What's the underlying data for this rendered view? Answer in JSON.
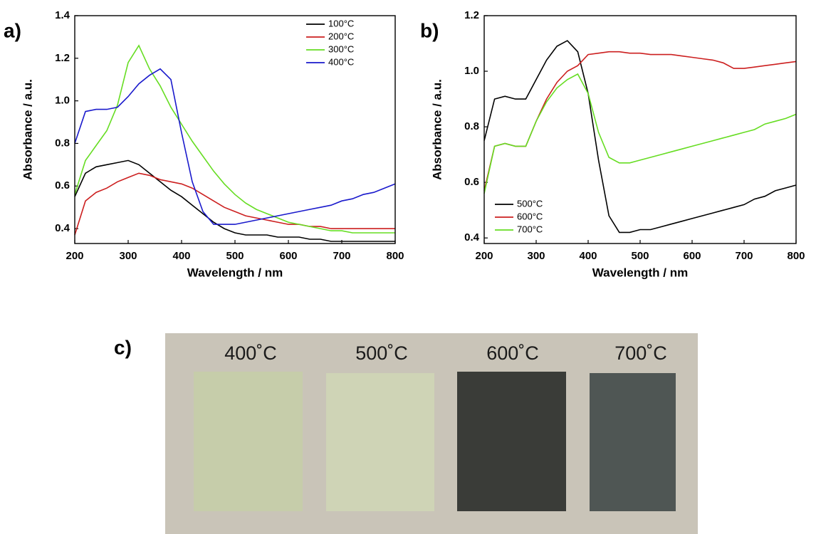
{
  "chart_data": [
    {
      "type": "line",
      "panel": "a)",
      "xlabel": "Wavelength / nm",
      "ylabel": "Absorbance / a.u.",
      "x": [
        200,
        220,
        240,
        260,
        280,
        300,
        320,
        340,
        360,
        380,
        400,
        420,
        440,
        460,
        480,
        500,
        520,
        540,
        560,
        580,
        600,
        620,
        640,
        660,
        680,
        700,
        720,
        740,
        760,
        780,
        800
      ],
      "series": [
        {
          "name": "100°C",
          "color": "#000000",
          "values": [
            0.55,
            0.66,
            0.69,
            0.7,
            0.71,
            0.72,
            0.7,
            0.66,
            0.62,
            0.58,
            0.55,
            0.51,
            0.47,
            0.43,
            0.4,
            0.38,
            0.37,
            0.37,
            0.37,
            0.36,
            0.36,
            0.36,
            0.35,
            0.35,
            0.34,
            0.34,
            0.34,
            0.34,
            0.34,
            0.34,
            0.34
          ]
        },
        {
          "name": "200°C",
          "color": "#cc1f1f",
          "values": [
            0.37,
            0.53,
            0.57,
            0.59,
            0.62,
            0.64,
            0.66,
            0.65,
            0.63,
            0.62,
            0.61,
            0.59,
            0.56,
            0.53,
            0.5,
            0.48,
            0.46,
            0.45,
            0.44,
            0.43,
            0.42,
            0.42,
            0.41,
            0.41,
            0.4,
            0.4,
            0.4,
            0.4,
            0.4,
            0.4,
            0.4
          ]
        },
        {
          "name": "300°C",
          "color": "#66dd22",
          "values": [
            0.56,
            0.72,
            0.79,
            0.86,
            0.98,
            1.18,
            1.26,
            1.15,
            1.07,
            0.97,
            0.89,
            0.81,
            0.74,
            0.67,
            0.61,
            0.56,
            0.52,
            0.49,
            0.47,
            0.45,
            0.43,
            0.42,
            0.41,
            0.4,
            0.39,
            0.39,
            0.38,
            0.38,
            0.38,
            0.38,
            0.38
          ]
        },
        {
          "name": "400°C",
          "color": "#1a1acc",
          "values": [
            0.8,
            0.95,
            0.96,
            0.96,
            0.97,
            1.02,
            1.08,
            1.12,
            1.15,
            1.1,
            0.85,
            0.62,
            0.48,
            0.42,
            0.42,
            0.42,
            0.43,
            0.44,
            0.45,
            0.46,
            0.47,
            0.48,
            0.49,
            0.5,
            0.51,
            0.53,
            0.54,
            0.56,
            0.57,
            0.59,
            0.61
          ]
        }
      ],
      "xlim": [
        200,
        800
      ],
      "xticks": [
        200,
        300,
        400,
        500,
        600,
        700,
        800
      ],
      "ylim": [
        0.33,
        1.4
      ],
      "yticks": [
        0.4,
        0.6,
        0.8,
        {
          "value": 1,
          "label": "1.0"
        },
        1.2,
        1.4
      ],
      "legend": "upper right"
    },
    {
      "type": "line",
      "panel": "b)",
      "xlabel": "Wavelength / nm",
      "ylabel": "Absorbance / a.u.",
      "x": [
        200,
        220,
        240,
        260,
        280,
        300,
        320,
        340,
        360,
        380,
        400,
        420,
        440,
        460,
        480,
        500,
        520,
        540,
        560,
        580,
        600,
        620,
        640,
        660,
        680,
        700,
        720,
        740,
        760,
        780,
        800
      ],
      "series": [
        {
          "name": "500°C",
          "color": "#000000",
          "values": [
            0.75,
            0.9,
            0.91,
            0.9,
            0.9,
            0.97,
            1.04,
            1.09,
            1.11,
            1.07,
            0.92,
            0.68,
            0.48,
            0.42,
            0.42,
            0.43,
            0.43,
            0.44,
            0.45,
            0.46,
            0.47,
            0.48,
            0.49,
            0.5,
            0.51,
            0.52,
            0.54,
            0.55,
            0.57,
            0.58,
            0.59
          ]
        },
        {
          "name": "600°C",
          "color": "#cc1f1f",
          "values": [
            0.57,
            0.73,
            0.74,
            0.73,
            0.73,
            0.82,
            0.9,
            0.96,
            1.0,
            1.02,
            1.06,
            1.065,
            1.07,
            1.07,
            1.065,
            1.065,
            1.06,
            1.06,
            1.06,
            1.055,
            1.05,
            1.045,
            1.04,
            1.03,
            1.01,
            1.01,
            1.015,
            1.02,
            1.025,
            1.03,
            1.035
          ]
        },
        {
          "name": "700°C",
          "color": "#66dd22",
          "values": [
            0.56,
            0.73,
            0.74,
            0.73,
            0.73,
            0.82,
            0.89,
            0.94,
            0.97,
            0.99,
            0.92,
            0.78,
            0.69,
            0.67,
            0.67,
            0.68,
            0.69,
            0.7,
            0.71,
            0.72,
            0.73,
            0.74,
            0.75,
            0.76,
            0.77,
            0.78,
            0.79,
            0.81,
            0.82,
            0.83,
            0.845
          ]
        }
      ],
      "xlim": [
        200,
        800
      ],
      "xticks": [
        200,
        300,
        400,
        500,
        600,
        700,
        800
      ],
      "ylim": [
        0.38,
        1.2
      ],
      "yticks": [
        0.4,
        0.6,
        0.8,
        {
          "value": 1,
          "label": "1.0"
        },
        1.2
      ],
      "legend": "lower left"
    }
  ],
  "photo": {
    "panel": "c)",
    "samples": [
      "400˚C",
      "500˚C",
      "600˚C",
      "700˚C"
    ]
  }
}
